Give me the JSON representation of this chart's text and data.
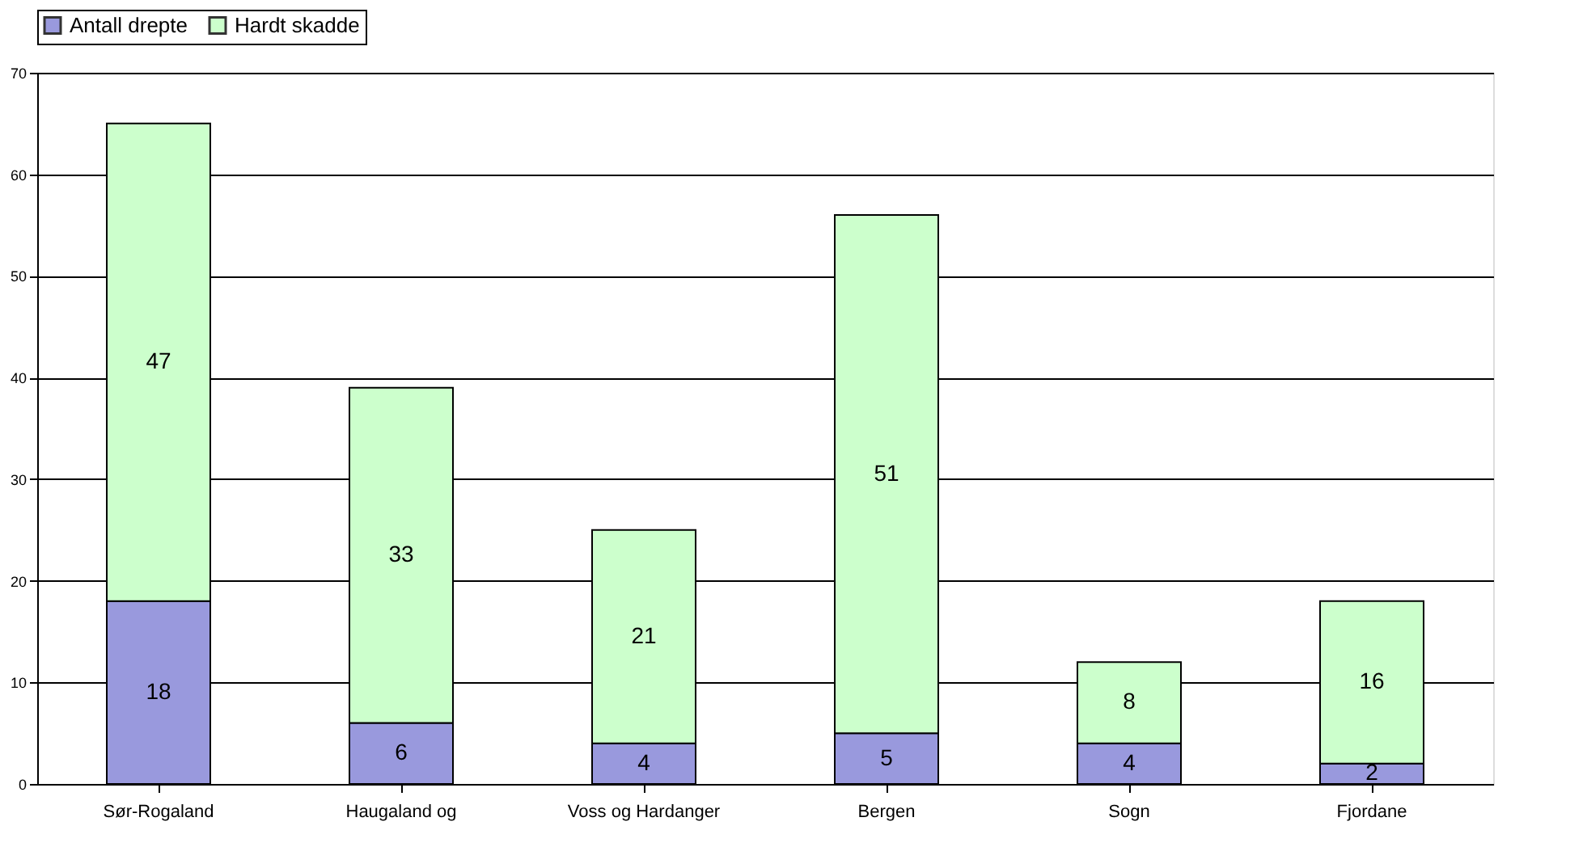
{
  "chart_data": {
    "type": "bar",
    "stacked": true,
    "categories": [
      "Sør-Rogaland",
      "Haugaland og",
      "Voss og Hardanger",
      "Bergen",
      "Sogn",
      "Fjordane"
    ],
    "series": [
      {
        "name": "Antall drepte",
        "color": "#9999dd",
        "values": [
          18,
          6,
          4,
          5,
          4,
          2
        ]
      },
      {
        "name": "Hardt skadde",
        "color": "#ccffcc",
        "values": [
          47,
          33,
          21,
          51,
          8,
          16
        ]
      }
    ],
    "ylim": [
      0,
      70
    ],
    "yticks": [
      0,
      10,
      20,
      30,
      40,
      50,
      60,
      70
    ],
    "grid": "y",
    "legend": "top",
    "data_labels": true
  }
}
